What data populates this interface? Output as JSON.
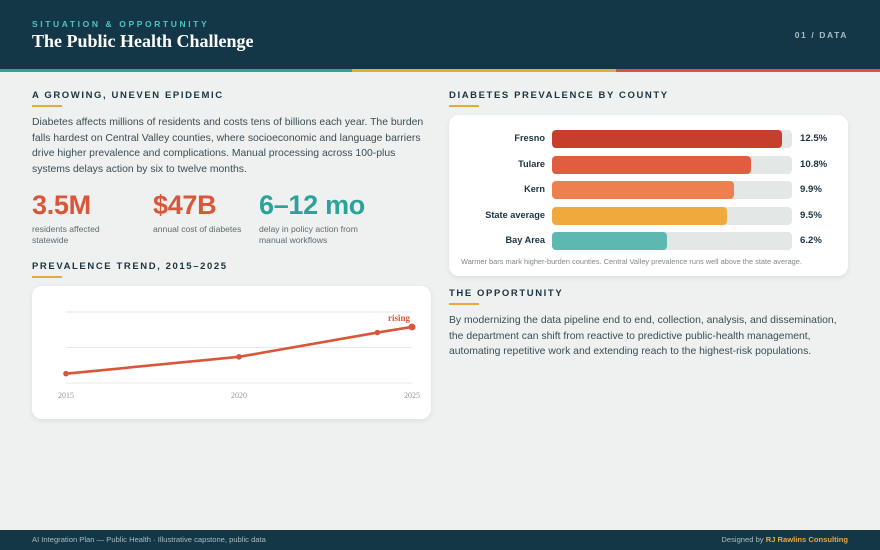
{
  "header": {
    "eyebrow": "SITUATION & OPPORTUNITY",
    "title": "The Public Health Challenge",
    "slide_number": "01 / DATA"
  },
  "epidemic": {
    "title": "A GROWING, UNEVEN EPIDEMIC",
    "body": "Diabetes affects millions of residents and costs tens of billions each year. The burden falls hardest on Central Valley counties, where socioeconomic and language barriers drive higher prevalence and complications. Manual processing across 100-plus systems delays action by six to twelve months.",
    "stats": [
      {
        "value": "3.5M",
        "label": "residents affected statewide",
        "color": "#d9563b"
      },
      {
        "value": "$47B",
        "label": "annual cost of diabetes",
        "color": "#d9563b"
      },
      {
        "value": "6–12 mo",
        "label": "delay in policy action from manual workflows",
        "color": "#2aa39c"
      }
    ]
  },
  "trend": {
    "title": "PREVALENCE TREND, 2015–2025",
    "annotation": "rising",
    "line_color": "#d9563b"
  },
  "county": {
    "title": "DIABETES PREVALENCE BY COUNTY",
    "note": "Warmer bars mark higher-burden counties. Central Valley prevalence runs well above the state average."
  },
  "opportunity": {
    "title": "THE OPPORTUNITY",
    "body": "By modernizing the data pipeline end to end, collection, analysis, and dissemination, the department can shift from reactive to predictive public-health management, automating repetitive work and extending reach to the highest-risk populations."
  },
  "footer": {
    "left": "AI Integration Plan — Public Health · Illustrative capstone, public data",
    "designed_by": "Designed by",
    "brand": "RJ Rawlins Consulting"
  },
  "chart_data": [
    {
      "type": "bar",
      "orientation": "horizontal",
      "title": "DIABETES PREVALENCE BY COUNTY",
      "categories": [
        "Fresno",
        "Tulare",
        "Kern",
        "State average",
        "Bay Area"
      ],
      "values": [
        12.5,
        10.8,
        9.9,
        9.5,
        6.2
      ],
      "value_labels": [
        "12.5%",
        "10.8%",
        "9.9%",
        "9.5%",
        "6.2%"
      ],
      "colors": [
        "#c73e2c",
        "#e25c42",
        "#ef7f4f",
        "#f0a93c",
        "#5cb8b0"
      ],
      "xlim": [
        0,
        12.5
      ],
      "fill_fractions": [
        0.96,
        0.83,
        0.76,
        0.73,
        0.48
      ]
    },
    {
      "type": "line",
      "title": "PREVALENCE TREND, 2015–2025",
      "x": [
        2015,
        2020,
        2024,
        2025
      ],
      "y": [
        8.2,
        9.1,
        10.4,
        10.7
      ],
      "xticks": [
        "2015",
        "2020",
        "2025"
      ],
      "xlim": [
        2015,
        2025
      ],
      "ylim": [
        7.7,
        11.5
      ],
      "grid": true
    }
  ]
}
